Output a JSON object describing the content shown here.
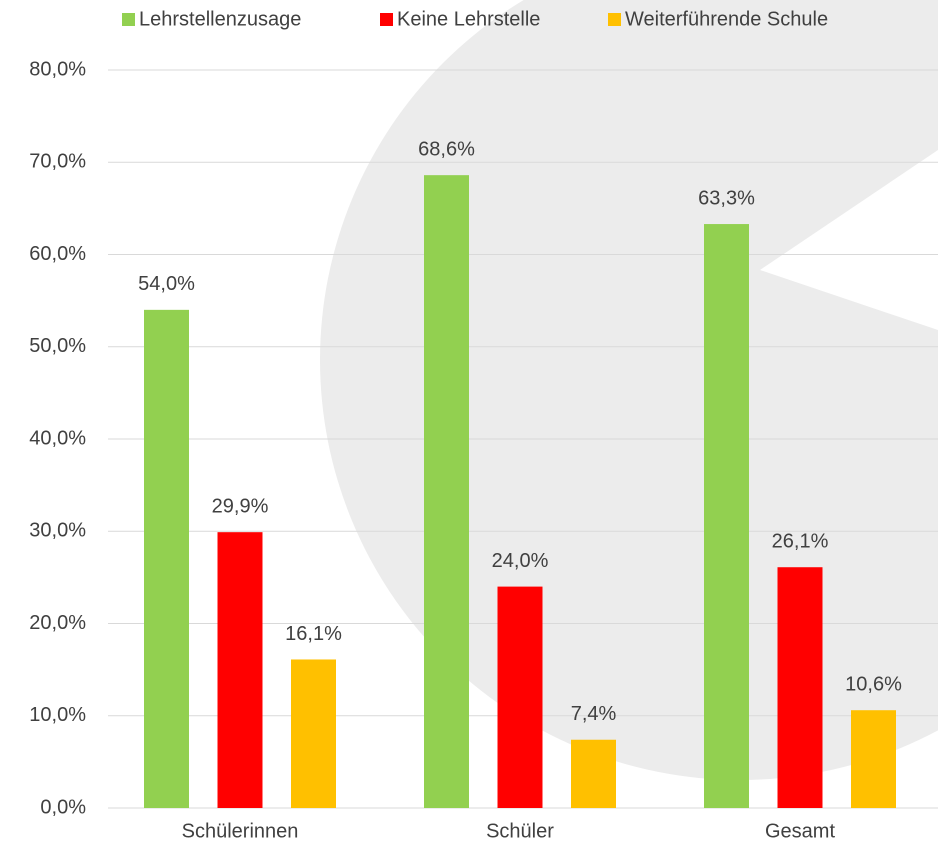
{
  "chart_data": {
    "type": "bar",
    "categories": [
      "Schülerinnen",
      "Schüler",
      "Gesamt"
    ],
    "series": [
      {
        "name": "Lehrstellenzusage",
        "color": "#92d050",
        "values": [
          54.0,
          68.6,
          63.3
        ],
        "value_labels": [
          "54,0%",
          "68,6%",
          "63,3%"
        ]
      },
      {
        "name": "Keine Lehrstelle",
        "color": "#ff0000",
        "values": [
          29.9,
          24.0,
          26.1
        ],
        "value_labels": [
          "29,9%",
          "24,0%",
          "26,1%"
        ]
      },
      {
        "name": "Weiterführende Schule",
        "color": "#ffc000",
        "values": [
          16.1,
          7.4,
          10.6
        ],
        "value_labels": [
          "16,1%",
          "7,4%",
          "10,6%"
        ]
      }
    ],
    "ylim": [
      0,
      80
    ],
    "yticks": [
      {
        "value": 0,
        "label": "0,0%"
      },
      {
        "value": 10,
        "label": "10,0%"
      },
      {
        "value": 20,
        "label": "20,0%"
      },
      {
        "value": 30,
        "label": "30,0%"
      },
      {
        "value": 40,
        "label": "40,0%"
      },
      {
        "value": 50,
        "label": "50,0%"
      },
      {
        "value": 60,
        "label": "60,0%"
      },
      {
        "value": 70,
        "label": "70,0%"
      },
      {
        "value": 80,
        "label": "80,0%"
      }
    ],
    "grid": true,
    "legend": "top"
  }
}
